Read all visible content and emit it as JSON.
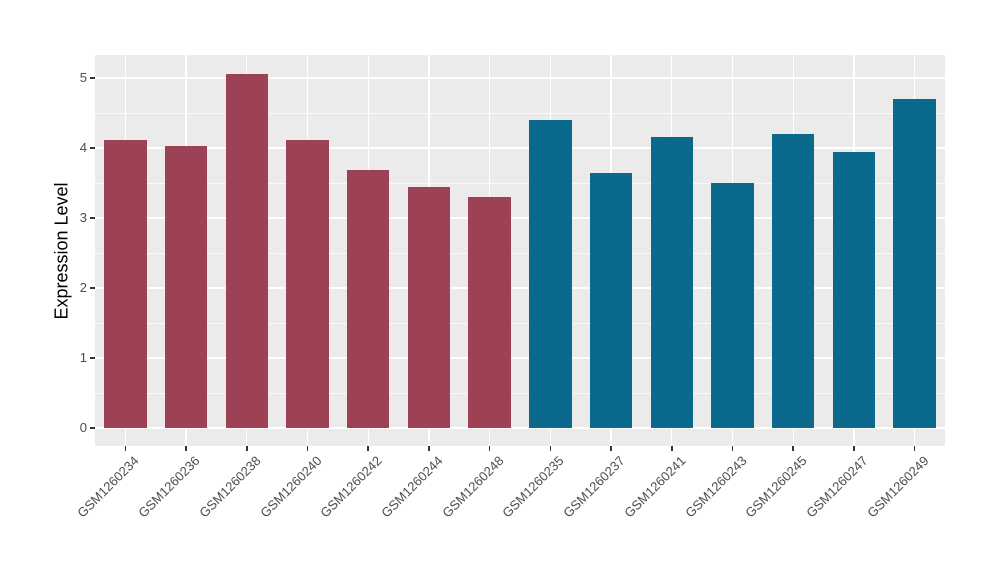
{
  "figure": {
    "background": "#FFFFFF",
    "panel_background": "#EBEBEB",
    "gridline_color": "#FFFFFF",
    "tick_color": "#333333",
    "axis_text_color": "#4D4D4D",
    "axis_title_color": "#000000"
  },
  "chart_data": {
    "type": "bar",
    "title": "",
    "xlabel": "",
    "ylabel": "Expression Level",
    "ylim": [
      -0.25,
      5.32
    ],
    "yticks": [
      0,
      1,
      2,
      3,
      4,
      5
    ],
    "yticks_minor": [
      0.5,
      1.5,
      2.5,
      3.5,
      4.5
    ],
    "grid": "on",
    "legend": "none",
    "x_tick_rotation_deg": -45,
    "bar_width_fraction": 0.7,
    "categories": [
      "GSM1260234",
      "GSM1260236",
      "GSM1260238",
      "GSM1260240",
      "GSM1260242",
      "GSM1260244",
      "GSM1260248",
      "GSM1260235",
      "GSM1260237",
      "GSM1260241",
      "GSM1260243",
      "GSM1260245",
      "GSM1260247",
      "GSM1260249"
    ],
    "values": [
      4.12,
      4.03,
      5.06,
      4.11,
      3.69,
      3.44,
      3.3,
      4.4,
      3.64,
      4.16,
      3.5,
      4.2,
      3.94,
      4.7
    ],
    "groups": [
      "group1",
      "group1",
      "group1",
      "group1",
      "group1",
      "group1",
      "group1",
      "group2",
      "group2",
      "group2",
      "group2",
      "group2",
      "group2",
      "group2"
    ],
    "group_colors": {
      "group1": "#9C4254",
      "group2": "#0B6A8B"
    }
  }
}
